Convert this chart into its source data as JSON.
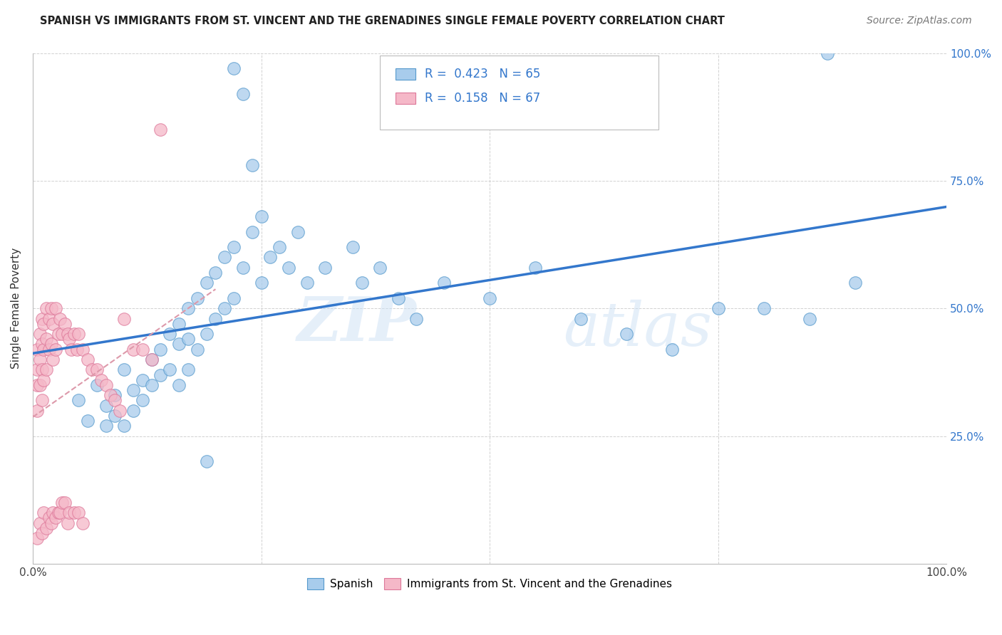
{
  "title": "SPANISH VS IMMIGRANTS FROM ST. VINCENT AND THE GRENADINES SINGLE FEMALE POVERTY CORRELATION CHART",
  "source": "Source: ZipAtlas.com",
  "ylabel": "Single Female Poverty",
  "xlim": [
    0.0,
    1.0
  ],
  "ylim": [
    0.0,
    1.0
  ],
  "watermark_zip": "ZIP",
  "watermark_atlas": "atlas",
  "blue_R": 0.423,
  "blue_N": 65,
  "pink_R": 0.158,
  "pink_N": 67,
  "blue_fill": "#a8ccec",
  "blue_edge": "#5599cc",
  "pink_fill": "#f5b8c8",
  "pink_edge": "#dd7799",
  "blue_line_color": "#3377cc",
  "pink_line_color": "#dd99aa",
  "legend_blue_label": "Spanish",
  "legend_pink_label": "Immigrants from St. Vincent and the Grenadines",
  "blue_scatter_x": [
    0.05,
    0.06,
    0.07,
    0.08,
    0.08,
    0.09,
    0.09,
    0.1,
    0.1,
    0.11,
    0.11,
    0.12,
    0.12,
    0.13,
    0.13,
    0.14,
    0.14,
    0.15,
    0.15,
    0.16,
    0.16,
    0.16,
    0.17,
    0.17,
    0.17,
    0.18,
    0.18,
    0.19,
    0.19,
    0.2,
    0.2,
    0.21,
    0.21,
    0.22,
    0.22,
    0.23,
    0.24,
    0.25,
    0.25,
    0.26,
    0.27,
    0.28,
    0.29,
    0.3,
    0.32,
    0.35,
    0.36,
    0.38,
    0.4,
    0.42,
    0.45,
    0.5,
    0.55,
    0.6,
    0.65,
    0.7,
    0.75,
    0.8,
    0.85,
    0.9,
    0.22,
    0.23,
    0.24,
    0.87,
    0.19
  ],
  "blue_scatter_y": [
    0.32,
    0.28,
    0.35,
    0.31,
    0.27,
    0.33,
    0.29,
    0.38,
    0.27,
    0.34,
    0.3,
    0.36,
    0.32,
    0.4,
    0.35,
    0.42,
    0.37,
    0.45,
    0.38,
    0.47,
    0.43,
    0.35,
    0.5,
    0.44,
    0.38,
    0.52,
    0.42,
    0.55,
    0.45,
    0.57,
    0.48,
    0.6,
    0.5,
    0.62,
    0.52,
    0.58,
    0.65,
    0.55,
    0.68,
    0.6,
    0.62,
    0.58,
    0.65,
    0.55,
    0.58,
    0.62,
    0.55,
    0.58,
    0.52,
    0.48,
    0.55,
    0.52,
    0.58,
    0.48,
    0.45,
    0.42,
    0.5,
    0.5,
    0.48,
    0.55,
    0.97,
    0.92,
    0.78,
    1.0,
    0.2
  ],
  "pink_scatter_x": [
    0.005,
    0.005,
    0.005,
    0.005,
    0.005,
    0.008,
    0.008,
    0.008,
    0.008,
    0.01,
    0.01,
    0.01,
    0.01,
    0.01,
    0.012,
    0.012,
    0.012,
    0.012,
    0.015,
    0.015,
    0.015,
    0.015,
    0.018,
    0.018,
    0.018,
    0.02,
    0.02,
    0.02,
    0.022,
    0.022,
    0.022,
    0.025,
    0.025,
    0.025,
    0.028,
    0.028,
    0.03,
    0.03,
    0.032,
    0.032,
    0.035,
    0.035,
    0.038,
    0.038,
    0.04,
    0.04,
    0.042,
    0.045,
    0.045,
    0.048,
    0.05,
    0.05,
    0.055,
    0.055,
    0.06,
    0.065,
    0.07,
    0.075,
    0.08,
    0.085,
    0.09,
    0.095,
    0.1,
    0.11,
    0.12,
    0.13,
    0.14
  ],
  "pink_scatter_y": [
    0.42,
    0.38,
    0.35,
    0.3,
    0.05,
    0.45,
    0.4,
    0.35,
    0.08,
    0.48,
    0.43,
    0.38,
    0.32,
    0.06,
    0.47,
    0.42,
    0.36,
    0.1,
    0.5,
    0.44,
    0.38,
    0.07,
    0.48,
    0.42,
    0.09,
    0.5,
    0.43,
    0.08,
    0.47,
    0.4,
    0.1,
    0.5,
    0.42,
    0.09,
    0.45,
    0.1,
    0.48,
    0.1,
    0.45,
    0.12,
    0.47,
    0.12,
    0.45,
    0.08,
    0.44,
    0.1,
    0.42,
    0.45,
    0.1,
    0.42,
    0.45,
    0.1,
    0.42,
    0.08,
    0.4,
    0.38,
    0.38,
    0.36,
    0.35,
    0.33,
    0.32,
    0.3,
    0.48,
    0.42,
    0.42,
    0.4,
    0.85
  ]
}
